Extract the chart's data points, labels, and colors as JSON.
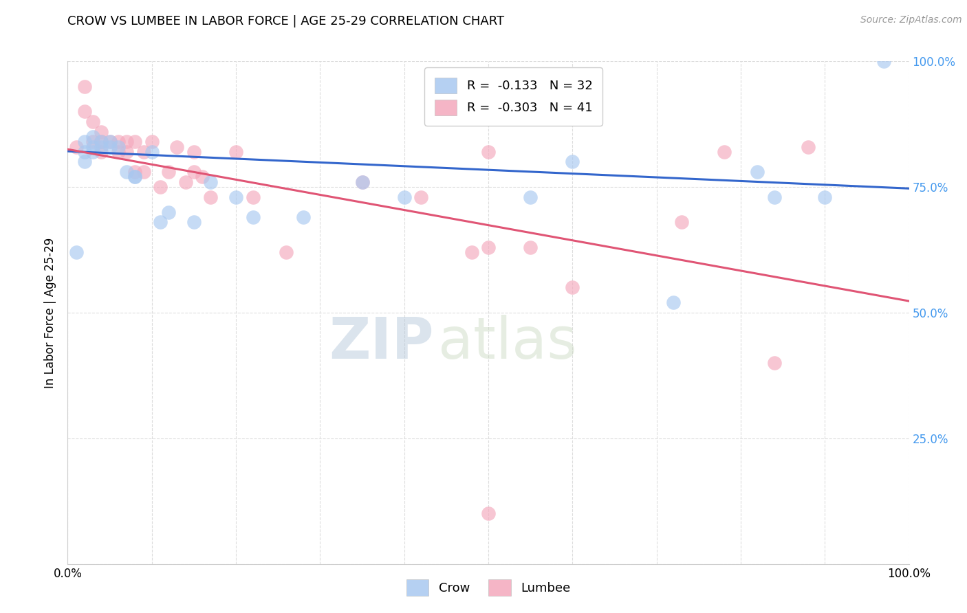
{
  "title": "CROW VS LUMBEE IN LABOR FORCE | AGE 25-29 CORRELATION CHART",
  "source": "Source: ZipAtlas.com",
  "ylabel": "In Labor Force | Age 25-29",
  "xlim": [
    0.0,
    1.0
  ],
  "ylim": [
    0.0,
    1.0
  ],
  "crow_R": -0.133,
  "crow_N": 32,
  "lumbee_R": -0.303,
  "lumbee_N": 41,
  "crow_color": "#A8C8F0",
  "lumbee_color": "#F4A8BC",
  "crow_line_color": "#3366CC",
  "lumbee_line_color": "#E05575",
  "crow_scatter_x": [
    0.01,
    0.02,
    0.02,
    0.02,
    0.03,
    0.03,
    0.03,
    0.04,
    0.04,
    0.05,
    0.05,
    0.06,
    0.07,
    0.08,
    0.08,
    0.1,
    0.11,
    0.12,
    0.15,
    0.17,
    0.2,
    0.22,
    0.28,
    0.35,
    0.4,
    0.55,
    0.6,
    0.72,
    0.82,
    0.84,
    0.9,
    0.97
  ],
  "crow_scatter_y": [
    0.62,
    0.82,
    0.8,
    0.84,
    0.82,
    0.83,
    0.85,
    0.83,
    0.84,
    0.83,
    0.84,
    0.83,
    0.78,
    0.77,
    0.77,
    0.82,
    0.68,
    0.7,
    0.68,
    0.76,
    0.73,
    0.69,
    0.69,
    0.76,
    0.73,
    0.73,
    0.8,
    0.52,
    0.78,
    0.73,
    0.73,
    1.0
  ],
  "lumbee_scatter_x": [
    0.01,
    0.02,
    0.02,
    0.03,
    0.03,
    0.04,
    0.04,
    0.04,
    0.05,
    0.06,
    0.06,
    0.07,
    0.07,
    0.08,
    0.08,
    0.09,
    0.09,
    0.1,
    0.11,
    0.12,
    0.13,
    0.14,
    0.15,
    0.15,
    0.16,
    0.17,
    0.2,
    0.22,
    0.26,
    0.35,
    0.42,
    0.48,
    0.5,
    0.5,
    0.55,
    0.6,
    0.73,
    0.78,
    0.84,
    0.88,
    0.5
  ],
  "lumbee_scatter_y": [
    0.83,
    0.95,
    0.9,
    0.84,
    0.88,
    0.84,
    0.86,
    0.82,
    0.84,
    0.82,
    0.84,
    0.82,
    0.84,
    0.78,
    0.84,
    0.82,
    0.78,
    0.84,
    0.75,
    0.78,
    0.83,
    0.76,
    0.78,
    0.82,
    0.77,
    0.73,
    0.82,
    0.73,
    0.62,
    0.76,
    0.73,
    0.62,
    0.82,
    0.63,
    0.63,
    0.55,
    0.68,
    0.82,
    0.4,
    0.83,
    0.1
  ],
  "crow_line_x": [
    0.0,
    1.0
  ],
  "crow_line_y": [
    0.821,
    0.747
  ],
  "lumbee_line_x": [
    0.0,
    1.0
  ],
  "lumbee_line_y": [
    0.825,
    0.523
  ],
  "watermark_zip": "ZIP",
  "watermark_atlas": "atlas",
  "background_color": "#FFFFFF",
  "grid_color": "#DDDDDD",
  "right_tick_color": "#4499EE",
  "source_color": "#999999",
  "legend_crow_label": "R =  -0.133   N = 32",
  "legend_lumbee_label": "R =  -0.303   N = 41",
  "bottom_legend_crow": "Crow",
  "bottom_legend_lumbee": "Lumbee"
}
